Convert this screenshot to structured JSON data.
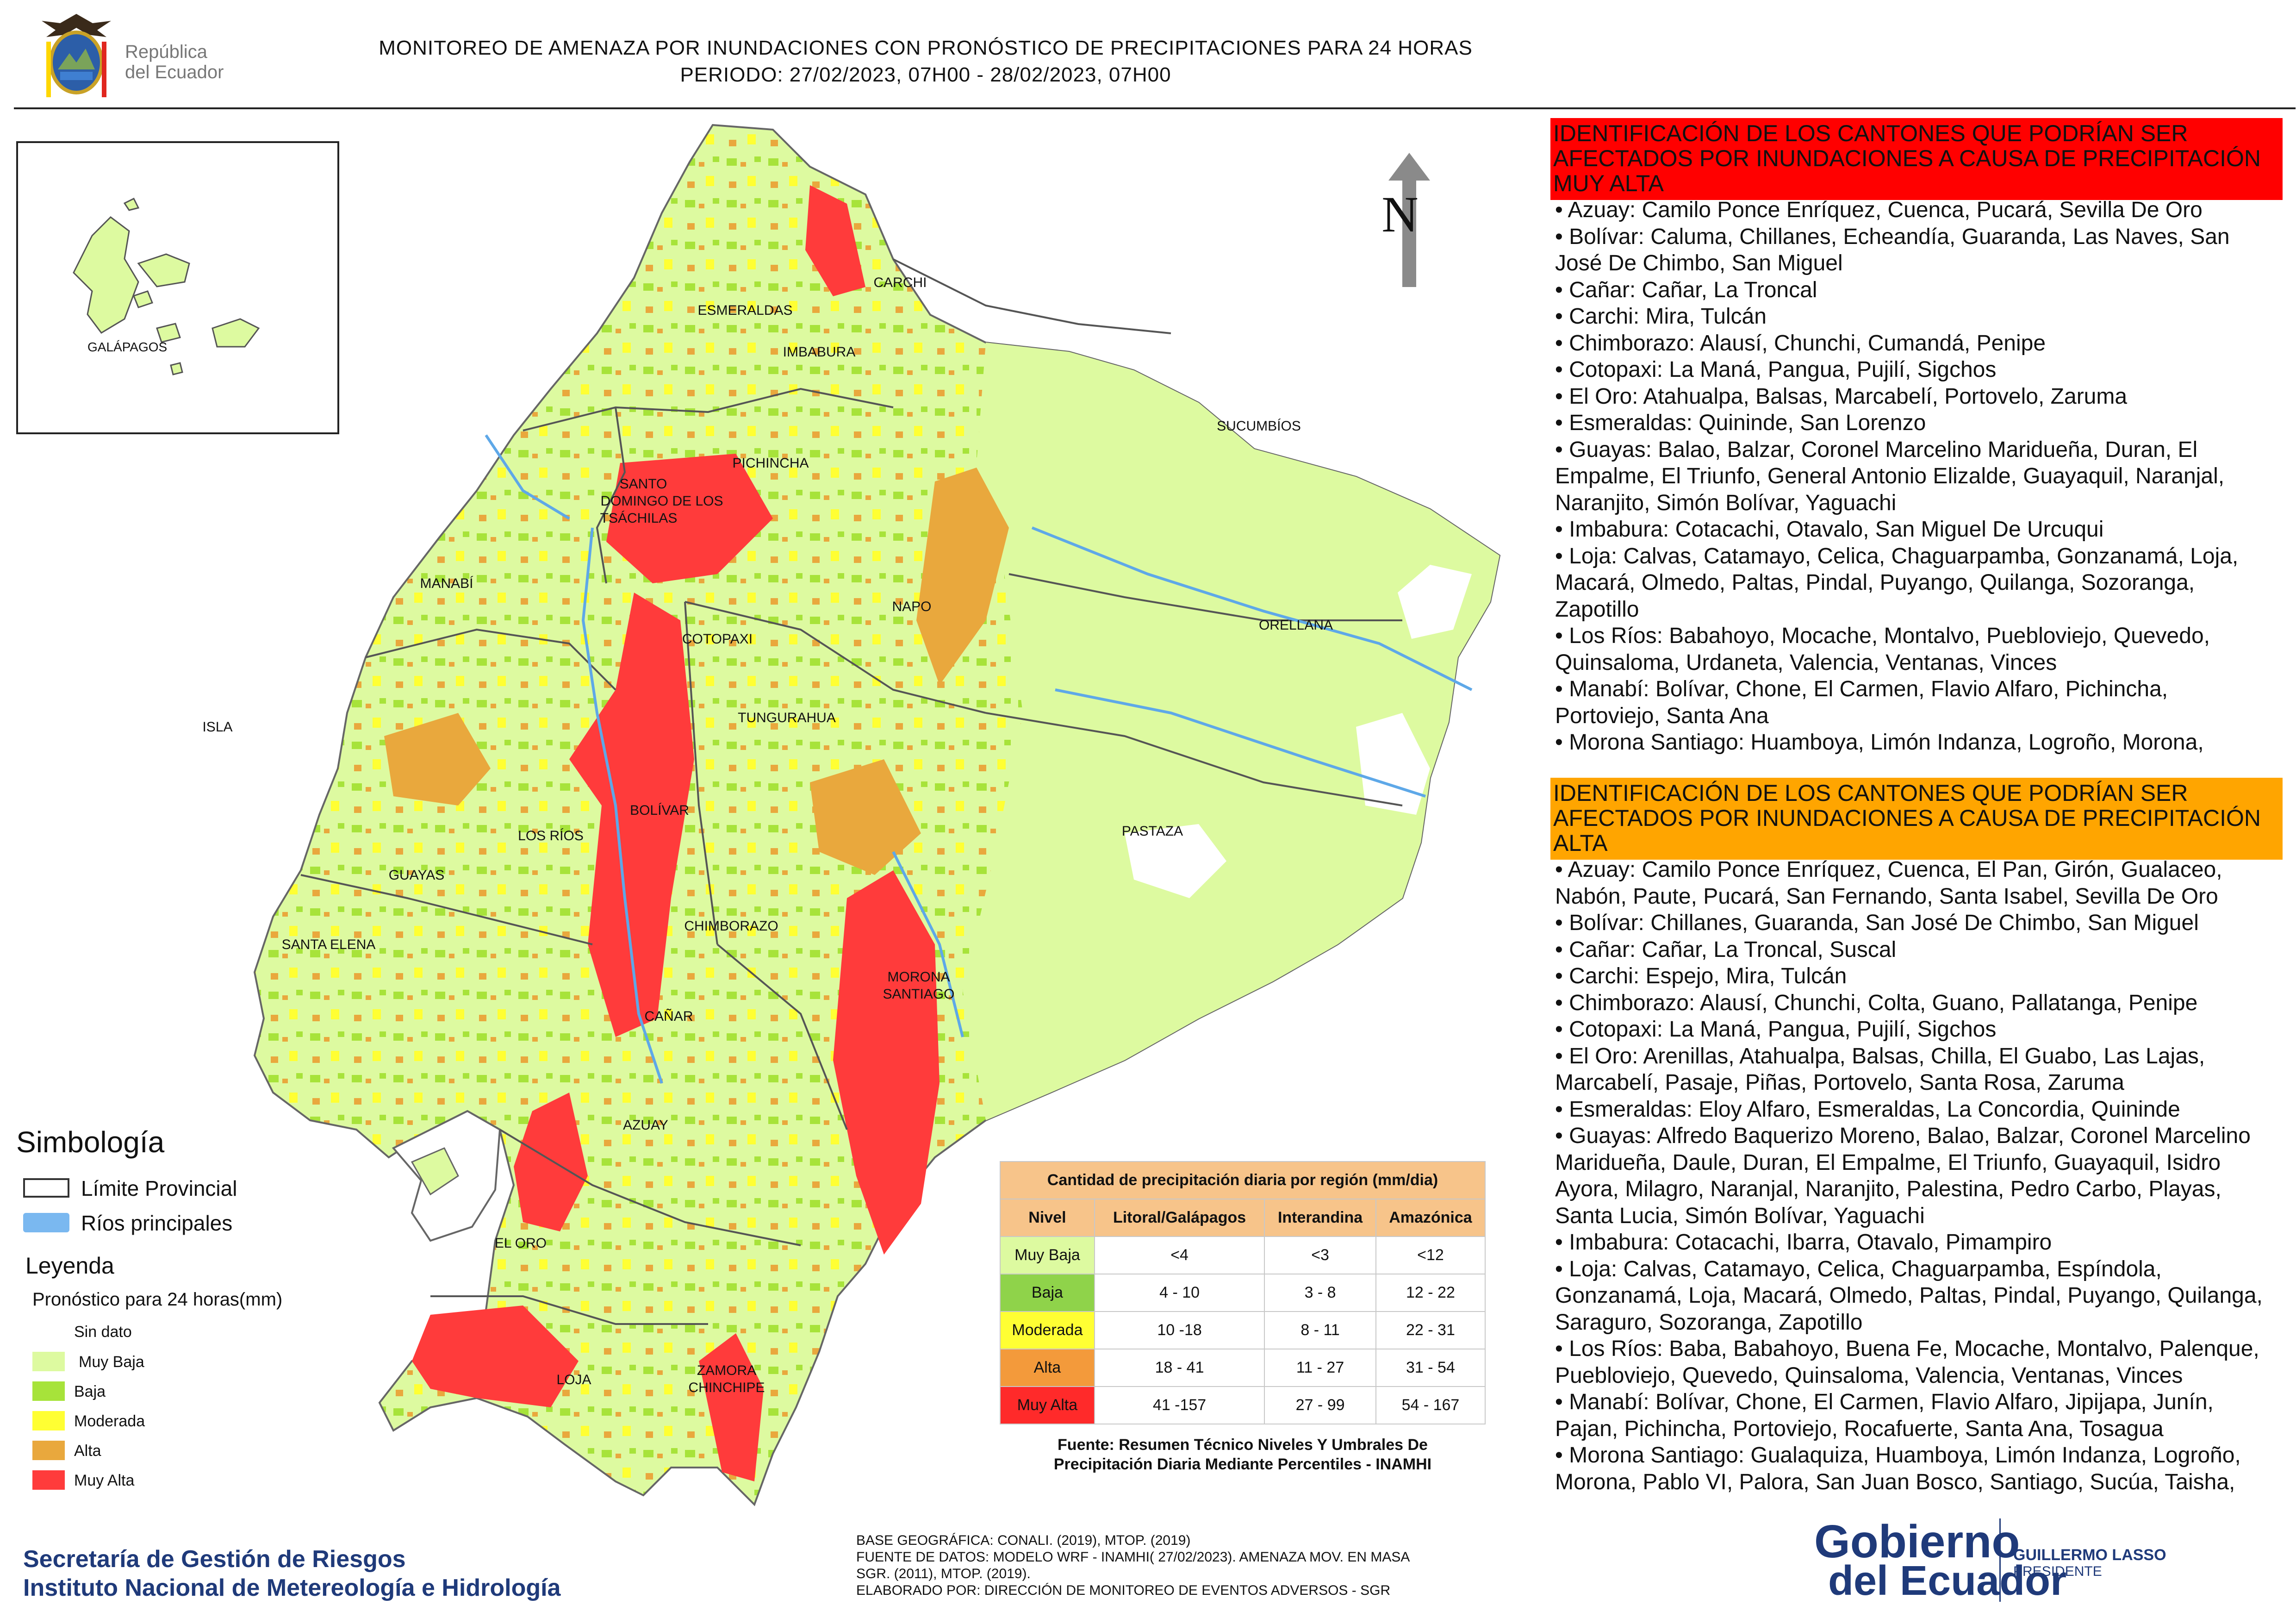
{
  "header": {
    "brand_line1": "República",
    "brand_line2": "del Ecuador",
    "title_line1": "MONITOREO DE AMENAZA POR INUNDACIONES  CON PRONÓSTICO DE  PRECIPITACIONES PARA 24 HORAS",
    "title_line2": "PERIODO: 27/02/2023, 07H00 - 28/02/2023, 07H00"
  },
  "colors": {
    "sin_dato": "#ffffff",
    "muy_baja": "#ddfaa0",
    "baja": "#a7e33a",
    "moderada": "#ffff33",
    "alta": "#e9a83d",
    "muy_alta": "#ff3b3b",
    "rivers": "#5ea8e8",
    "banner_red": "#ff0000",
    "banner_orange": "#ffa500",
    "brand_blue": "#1f3a7a"
  },
  "map": {
    "inset_label": "GALÁPAGOS",
    "north_label": "N",
    "provinces": [
      "CARCHI",
      "ESMERALDAS",
      "IMBABURA",
      "SUCUMBÍOS",
      "SANTO",
      "DOMINGO DE LOS",
      "TSÁCHILAS",
      "PICHINCHA",
      "MANABÍ",
      "NAPO",
      "ORELLANA",
      "COTOPAXI",
      "ISLA",
      "TUNGURAHUA",
      "BOLÍVAR",
      "LOS RÍOS",
      "PASTAZA",
      "GUAYAS",
      "CHIMBORAZO",
      "SANTA ELENA",
      "MORONA",
      "SANTIAGO",
      "CAÑAR",
      "AZUAY",
      "EL ORO",
      "ZAMORA",
      "CHINCHIPE",
      "LOJA"
    ]
  },
  "legend": {
    "symbology_title": "Simbología",
    "provincial_limit": "Límite Provincial",
    "main_rivers": "Ríos principales",
    "legend_title": "Leyenda",
    "forecast_label": "Pronóstico para 24 horas(mm)",
    "items": [
      "Sin dato",
      "Muy Baja",
      "Baja",
      "Moderada",
      "Alta",
      "Muy Alta"
    ]
  },
  "table": {
    "caption": "Cantidad de precipitación diaria por región (mm/dia)",
    "headers": [
      "Nivel",
      "Litoral/Galápagos",
      "Interandina",
      "Amazónica"
    ],
    "rows": [
      [
        "Muy Baja",
        "<4",
        "<3",
        "<12"
      ],
      [
        "Baja",
        "4 - 10",
        "3 - 8",
        "12 - 22"
      ],
      [
        "Moderada",
        "10 -18",
        "8 - 11",
        "22 - 31"
      ],
      [
        "Alta",
        "18 - 41",
        "11 - 27",
        "31 - 54"
      ],
      [
        "Muy Alta",
        "41 -157",
        "27 - 99",
        "54 - 167"
      ]
    ],
    "source_line1": "Fuente: Resumen Técnico Niveles Y Umbrales De",
    "source_line2": "Precipitación Diaria Mediante Percentiles - INAMHI"
  },
  "panel_very_high": {
    "heading": "IDENTIFICACIÓN DE LOS CANTONES QUE PODRÍAN SER AFECTADOS POR INUNDACIONES  A CAUSA DE PRECIPITACIÓN MUY ALTA",
    "items": [
      "• Azuay: Camilo Ponce Enríquez, Cuenca, Pucará, Sevilla De Oro",
      "• Bolívar: Caluma, Chillanes, Echeandía, Guaranda, Las Naves, San José De Chimbo, San Miguel",
      "• Cañar: Cañar, La Troncal",
      "• Carchi: Mira, Tulcán",
      "• Chimborazo: Alausí, Chunchi, Cumandá, Penipe",
      "• Cotopaxi: La Maná, Pangua, Pujilí, Sigchos",
      "• El Oro: Atahualpa, Balsas, Marcabelí, Portovelo, Zaruma",
      "• Esmeraldas: Quininde, San Lorenzo",
      "• Guayas: Balao, Balzar, Coronel Marcelino Maridueña, Duran, El Empalme, El Triunfo, General Antonio Elizalde, Guayaquil, Naranjal, Naranjito, Simón Bolívar, Yaguachi",
      "• Imbabura: Cotacachi, Otavalo, San Miguel De Urcuqui",
      "• Loja: Calvas, Catamayo, Celica, Chaguarpamba, Gonzanamá, Loja, Macará, Olmedo, Paltas, Pindal, Puyango, Quilanga, Sozoranga, Zapotillo",
      "• Los Ríos: Babahoyo, Mocache, Montalvo, Puebloviejo, Quevedo, Quinsaloma, Urdaneta, Valencia, Ventanas, Vinces",
      "• Manabí: Bolívar, Chone, El Carmen, Flavio Alfaro, Pichincha, Portoviejo, Santa Ana",
      "• Morona Santiago: Huamboya, Limón Indanza, Logroño, Morona,"
    ]
  },
  "panel_high": {
    "heading": "IDENTIFICACIÓN DE LOS CANTONES QUE  PODRÍAN SER AFECTADOS POR INUNDACIONES  A CAUSA DE PRECIPITACIÓN ALTA",
    "items": [
      "• Azuay: Camilo Ponce Enríquez, Cuenca, El Pan, Girón, Gualaceo, Nabón, Paute, Pucará, San Fernando, Santa Isabel, Sevilla De Oro",
      "• Bolívar: Chillanes, Guaranda, San José De Chimbo, San Miguel",
      "• Cañar: Cañar, La Troncal, Suscal",
      "• Carchi: Espejo, Mira, Tulcán",
      "• Chimborazo: Alausí, Chunchi, Colta, Guano, Pallatanga, Penipe",
      "• Cotopaxi: La Maná, Pangua, Pujilí, Sigchos",
      "• El Oro: Arenillas, Atahualpa, Balsas, Chilla, El Guabo, Las Lajas, Marcabelí, Pasaje, Piñas, Portovelo, Santa Rosa, Zaruma",
      "• Esmeraldas: Eloy Alfaro, Esmeraldas, La Concordia, Quininde",
      "• Guayas: Alfredo Baquerizo Moreno, Balao, Balzar, Coronel Marcelino Maridueña, Daule, Duran, El Empalme, El Triunfo, Guayaquil, Isidro Ayora, Milagro, Naranjal, Naranjito, Palestina, Pedro Carbo, Playas, Santa Lucia, Simón Bolívar, Yaguachi",
      "• Imbabura: Cotacachi, Ibarra, Otavalo, Pimampiro",
      "• Loja: Calvas, Catamayo, Celica, Chaguarpamba, Espíndola, Gonzanamá, Loja, Macará, Olmedo, Paltas, Pindal, Puyango, Quilanga, Saraguro, Sozoranga, Zapotillo",
      "• Los Ríos: Baba, Babahoyo, Buena Fe, Mocache, Montalvo, Palenque, Puebloviejo, Quevedo, Quinsaloma, Valencia, Ventanas, Vinces",
      "• Manabí: Bolívar, Chone, El Carmen, Flavio Alfaro, Jipijapa, Junín, Pajan, Pichincha, Portoviejo, Rocafuerte, Santa Ana, Tosagua",
      "• Morona Santiago: Gualaquiza, Huamboya, Limón Indanza, Logroño, Morona, Pablo VI, Palora, San Juan Bosco, Santiago, Sucúa, Taisha,"
    ]
  },
  "footer": {
    "org_line1": "Secretaría de Gestión de Riesgos",
    "org_line2": "Instituto Nacional de Metereología e Hidrología",
    "credit1": "BASE GEOGRÁFICA: CONALI. (2019), MTOP. (2019)",
    "credit2": "FUENTE DE DATOS: MODELO WRF - INAMHI( 27/02/2023).  AMENAZA MOV. EN MASA",
    "credit3": "SGR. (2011), MTOP. (2019).",
    "credit4": "ELABORADO POR: DIRECCIÓN DE MONITOREO DE EVENTOS ADVERSOS - SGR",
    "gob_word1": "Gobierno",
    "gob_word2": "del Ecuador",
    "president_name": "GUILLERMO LASSO",
    "president_title": "PRESIDENTE"
  }
}
